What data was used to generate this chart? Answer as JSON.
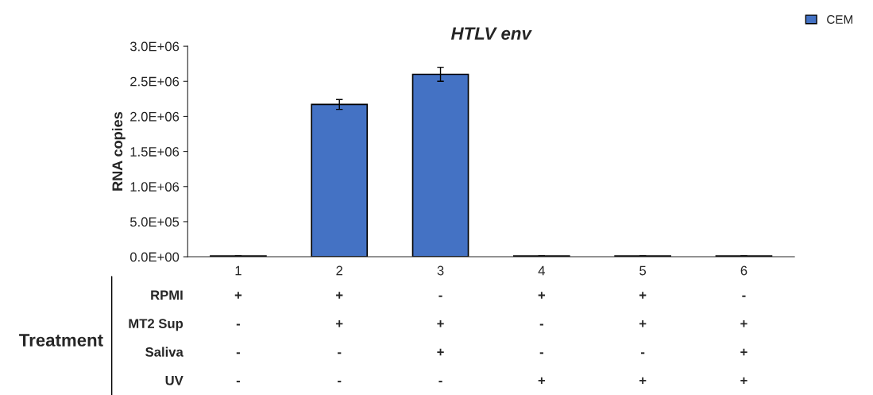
{
  "chart_data": {
    "type": "bar",
    "title": "HTLV env",
    "ylabel": "RNA copies",
    "categories": [
      "1",
      "2",
      "3",
      "4",
      "5",
      "6"
    ],
    "series": [
      {
        "name": "CEM",
        "color": "#4472c4",
        "values": [
          10000,
          2170000,
          2600000,
          10000,
          10000,
          10000
        ],
        "errors": [
          null,
          70000,
          100000,
          null,
          null,
          null
        ]
      }
    ],
    "ylim": [
      0,
      3000000
    ],
    "yticks": [
      {
        "value": 0,
        "label": "0.0E+00"
      },
      {
        "value": 500000,
        "label": "5.0E+05"
      },
      {
        "value": 1000000,
        "label": "1.0E+06"
      },
      {
        "value": 1500000,
        "label": "1.5E+06"
      },
      {
        "value": 2000000,
        "label": "2.0E+06"
      },
      {
        "value": 2500000,
        "label": "2.5E+06"
      },
      {
        "value": 3000000,
        "label": "3.0E+06"
      }
    ],
    "grid": false,
    "legend": "top right",
    "annotations": [
      "Treatment",
      "RPMI",
      "+",
      "+",
      "-",
      "+",
      "+",
      "-",
      "MT2 Sup",
      "-",
      "+",
      "+",
      "-",
      "+",
      "+",
      "Saliva",
      "-",
      "-",
      "+",
      "-",
      "-",
      "+",
      "UV",
      "-",
      "-",
      "-",
      "+",
      "+",
      "+"
    ]
  }
}
